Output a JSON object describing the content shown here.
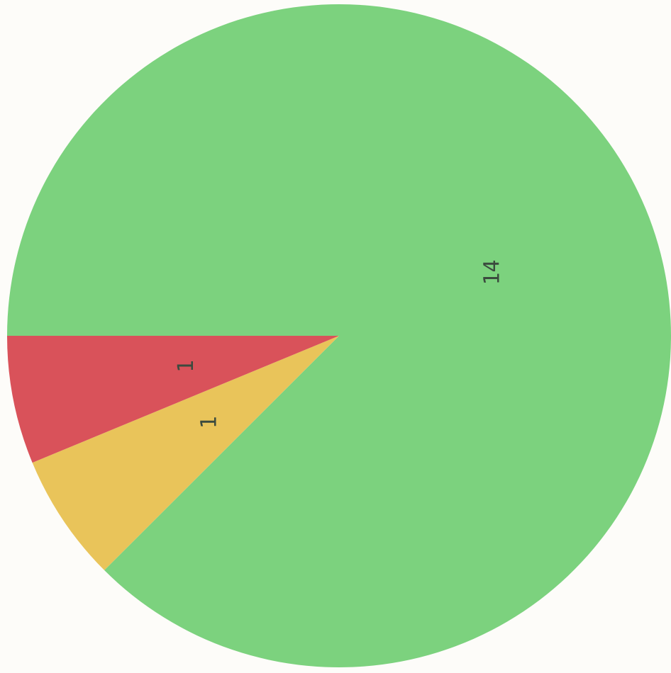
{
  "chart_data": {
    "type": "pie",
    "values": [
      14,
      1,
      1
    ],
    "labels": [
      "14",
      "1",
      "1"
    ],
    "colors": [
      "#7cd27e",
      "#e9c45a",
      "#d9525a"
    ],
    "start_angle_deg": 180,
    "direction": "clockwise",
    "label_rotation_deg": -90,
    "legend": "none"
  }
}
